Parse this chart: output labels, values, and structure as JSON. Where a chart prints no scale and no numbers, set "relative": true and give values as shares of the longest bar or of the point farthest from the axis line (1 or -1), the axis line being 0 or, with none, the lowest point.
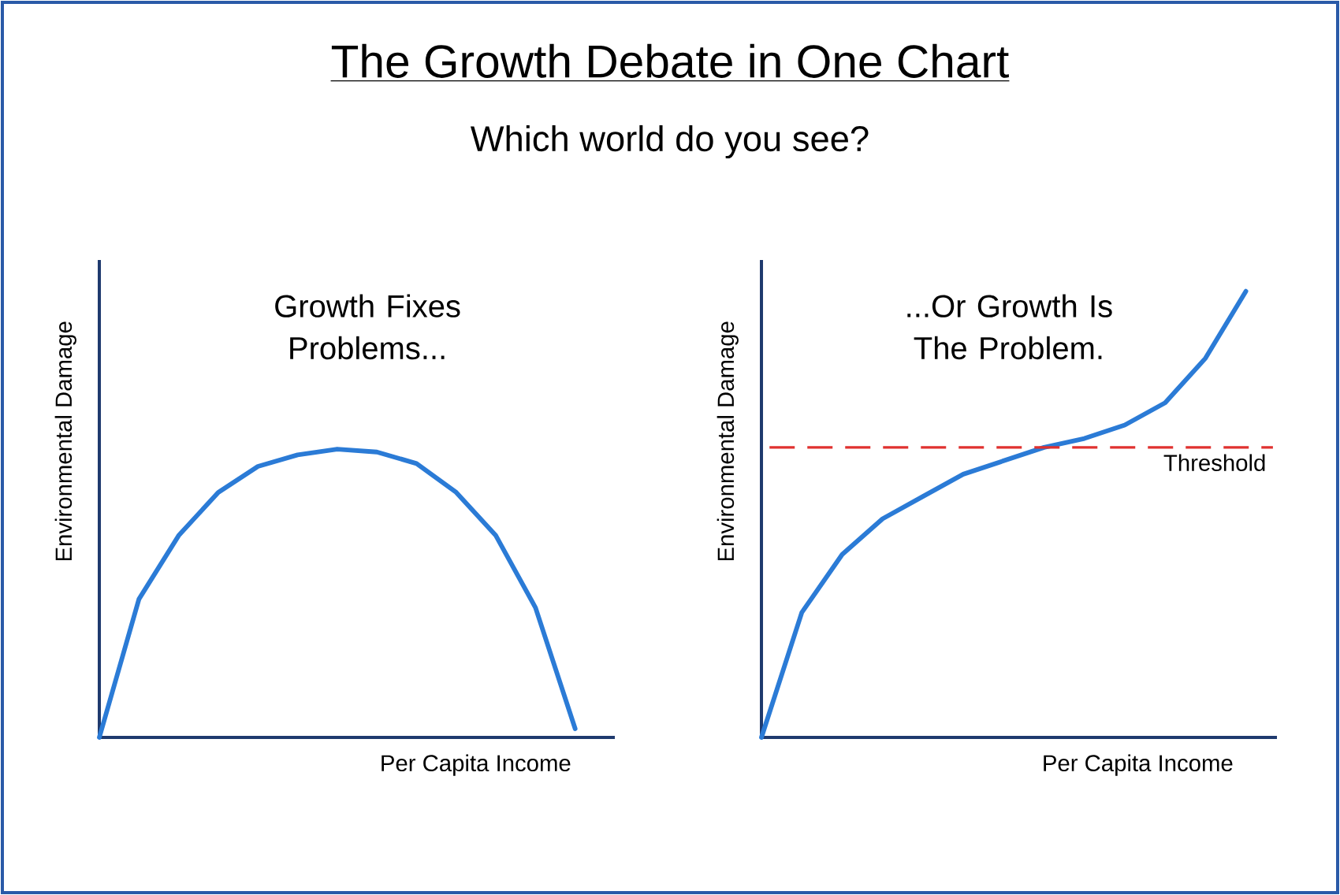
{
  "chart_data": [
    {
      "type": "line",
      "title": "The Growth Debate in One Chart",
      "subtitle": "Which world do you see?",
      "relative": true,
      "xlabel": "Per Capita Income",
      "ylabel": "Environmental Damage",
      "annotations": [
        "Growth Fixes Problems..."
      ],
      "color": "#2b7bd6",
      "categories": [
        null,
        null,
        null,
        null,
        null,
        null,
        null,
        null,
        null,
        null,
        null,
        null,
        null
      ],
      "values": [
        0,
        0.48,
        0.7,
        0.85,
        0.94,
        0.98,
        1.0,
        0.99,
        0.95,
        0.85,
        0.7,
        0.45,
        0.03
      ]
    },
    {
      "type": "line",
      "relative": true,
      "xlabel": "Per Capita Income",
      "ylabel": "Environmental Damage",
      "annotations": [
        "...Or Growth Is The Problem."
      ],
      "color": "#2b7bd6",
      "categories": [
        null,
        null,
        null,
        null,
        null,
        null,
        null,
        null,
        null,
        null,
        null,
        null,
        null
      ],
      "values": [
        0,
        0.28,
        0.41,
        0.49,
        0.54,
        0.59,
        0.62,
        0.65,
        0.67,
        0.7,
        0.75,
        0.85,
        1.0
      ],
      "ref_lines": [
        {
          "axis": "y",
          "value": 0.65,
          "label": "Threshold",
          "color": "#e0312f",
          "line_style": "dashed"
        }
      ]
    }
  ]
}
